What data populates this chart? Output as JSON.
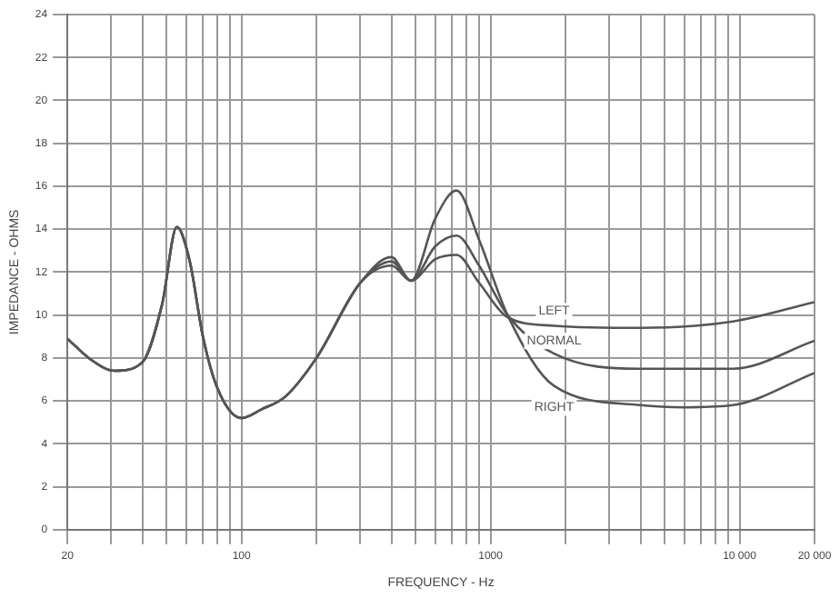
{
  "chart_data": {
    "type": "line",
    "xlabel": "FREQUENCY - Hz",
    "ylabel": "IMPEDANCE - OHMS",
    "log": "x",
    "grid": true,
    "legend": false,
    "marker": "none",
    "line_style": "solid",
    "xlim": [
      20,
      20000
    ],
    "ylim": [
      0,
      24
    ],
    "xticks": [
      20,
      {
        "value": 30,
        "label": null
      },
      {
        "value": 40,
        "label": null
      },
      {
        "value": 50,
        "label": null
      },
      {
        "value": 60,
        "label": null
      },
      {
        "value": 70,
        "label": null
      },
      {
        "value": 80,
        "label": null
      },
      {
        "value": 90,
        "label": null
      },
      100,
      {
        "value": 200,
        "label": null
      },
      {
        "value": 300,
        "label": null
      },
      {
        "value": 400,
        "label": null
      },
      {
        "value": 500,
        "label": null
      },
      {
        "value": 600,
        "label": null
      },
      {
        "value": 700,
        "label": null
      },
      {
        "value": 800,
        "label": null
      },
      {
        "value": 900,
        "label": null
      },
      1000,
      {
        "value": 2000,
        "label": null
      },
      {
        "value": 3000,
        "label": null
      },
      {
        "value": 4000,
        "label": null
      },
      {
        "value": 5000,
        "label": null
      },
      {
        "value": 6000,
        "label": null
      },
      {
        "value": 7000,
        "label": null
      },
      {
        "value": 8000,
        "label": null
      },
      {
        "value": 9000,
        "label": null
      },
      {
        "value": 10000,
        "label": "10 000"
      },
      {
        "value": 20000,
        "label": "20 000"
      }
    ],
    "yticks": [
      0,
      2,
      4,
      6,
      8,
      10,
      12,
      14,
      16,
      18,
      20,
      22,
      24
    ],
    "series": [
      {
        "name": "LEFT",
        "color": "#555555",
        "x": [
          20,
          25,
          31,
          40,
          48,
          55,
          62,
          70,
          80,
          100,
          120,
          150,
          200,
          300,
          400,
          480,
          600,
          730,
          900,
          1170,
          1800,
          4000,
          9400,
          20000
        ],
        "values": [
          8.9,
          7.9,
          7.4,
          7.8,
          10.5,
          14.1,
          12.5,
          9,
          6.6,
          5.2,
          5.6,
          6.2,
          8,
          11.5,
          12.3,
          11.6,
          12.6,
          12.8,
          11.5,
          9.9,
          9.5,
          9.4,
          9.7,
          10.6
        ]
      },
      {
        "name": "NORMAL",
        "color": "#555555",
        "x": [
          20,
          25,
          31,
          40,
          48,
          55,
          62,
          70,
          80,
          100,
          120,
          150,
          200,
          300,
          400,
          480,
          600,
          730,
          900,
          1170,
          1800,
          4000,
          9400,
          20000
        ],
        "values": [
          8.9,
          7.9,
          7.4,
          7.8,
          10.5,
          14.1,
          12.5,
          9,
          6.6,
          5.2,
          5.6,
          6.2,
          8,
          11.5,
          12.5,
          11.6,
          13.2,
          13.7,
          12.3,
          10,
          8.2,
          7.5,
          7.5,
          8.8
        ]
      },
      {
        "name": "RIGHT",
        "color": "#555555",
        "x": [
          20,
          25,
          31,
          40,
          48,
          55,
          62,
          70,
          80,
          100,
          120,
          150,
          200,
          300,
          400,
          480,
          600,
          730,
          900,
          1170,
          1800,
          4000,
          6000,
          9400,
          20000
        ],
        "values": [
          8.9,
          7.9,
          7.4,
          7.8,
          10.5,
          14.1,
          12.5,
          9,
          6.6,
          5.2,
          5.6,
          6.2,
          8,
          11.5,
          12.7,
          11.6,
          14.5,
          15.8,
          13.5,
          10,
          6.7,
          5.8,
          5.7,
          5.8,
          7.3
        ]
      }
    ]
  }
}
